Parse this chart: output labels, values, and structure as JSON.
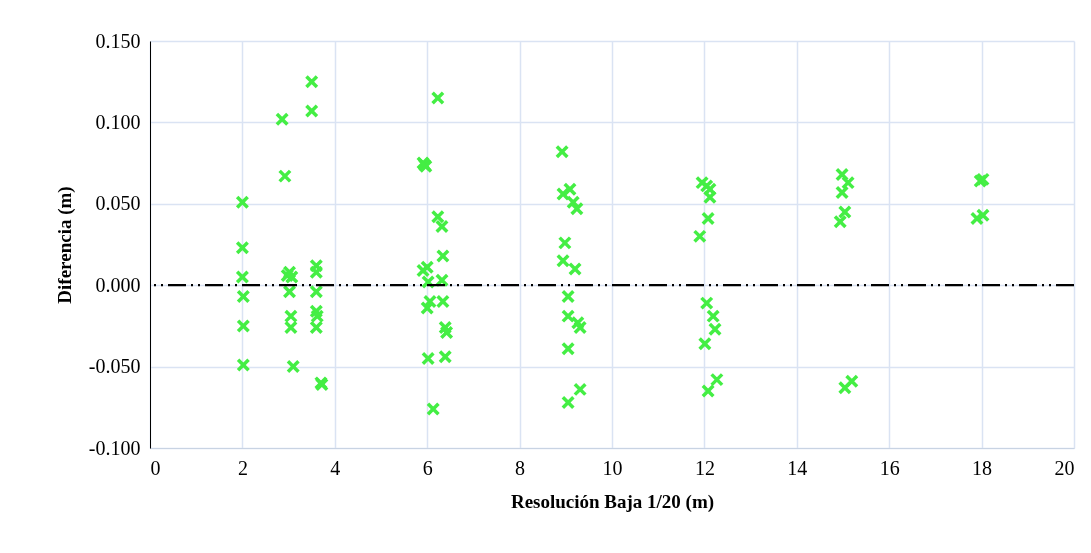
{
  "chart_data": {
    "type": "scatter",
    "xlabel": "Resolución  Baja 1/20 (m)",
    "ylabel": "Diferencia   (m)",
    "xlim": [
      0,
      20
    ],
    "xticks": [
      0,
      2,
      4,
      6,
      8,
      10,
      12,
      14,
      16,
      18,
      20
    ],
    "ylim": [
      -0.1,
      0.15
    ],
    "yticks": [
      {
        "value": -0.1,
        "label": "-0.100"
      },
      {
        "value": -0.05,
        "label": "-0.050"
      },
      {
        "value": 0,
        "label": "0.000"
      },
      {
        "value": 0.05,
        "label": "0.050"
      },
      {
        "value": 0.1,
        "label": "0.100"
      },
      {
        "value": 0.15,
        "label": "0.150"
      }
    ],
    "grid": true,
    "marker": "cross",
    "ref_lines": [
      {
        "axis": "y",
        "value": 0,
        "color": "#000000",
        "line_style": "dashed"
      }
    ],
    "series": [
      {
        "color": "#44ee44",
        "x": [
          2.0,
          2.0,
          2.0,
          2.02,
          2.02,
          2.02,
          2.86,
          2.92,
          2.97,
          3.02,
          3.07,
          3.02,
          3.05,
          3.05,
          3.1,
          3.5,
          3.5,
          3.6,
          3.6,
          3.6,
          3.6,
          3.62,
          3.6,
          3.7,
          3.72,
          6.23,
          5.91,
          5.94,
          5.97,
          6.23,
          6.32,
          6.34,
          6.0,
          5.91,
          6.02,
          6.32,
          6.06,
          6.34,
          6.0,
          6.39,
          6.42,
          6.02,
          6.39,
          6.13,
          8.92,
          8.94,
          9.09,
          9.16,
          9.24,
          8.98,
          8.94,
          9.2,
          9.05,
          9.05,
          9.26,
          9.31,
          9.05,
          9.31,
          9.05,
          11.95,
          12.05,
          12.12,
          12.12,
          12.08,
          11.9,
          12.05,
          12.19,
          12.23,
          12.01,
          12.27,
          12.08,
          14.98,
          15.11,
          14.98,
          15.04,
          14.94,
          15.19,
          15.04,
          17.97,
          18.03,
          17.9,
          18.03
        ],
        "values": [
          0.051,
          0.023,
          0.005,
          -0.007,
          -0.025,
          -0.049,
          0.102,
          0.067,
          0.006,
          0.008,
          0.005,
          -0.004,
          -0.019,
          -0.026,
          -0.05,
          0.125,
          0.107,
          0.012,
          0.008,
          -0.004,
          -0.016,
          -0.019,
          -0.026,
          -0.06,
          -0.061,
          0.115,
          0.075,
          0.074,
          0.073,
          0.042,
          0.036,
          0.018,
          0.011,
          0.009,
          0.002,
          0.003,
          -0.01,
          -0.01,
          -0.014,
          -0.026,
          -0.029,
          -0.045,
          -0.044,
          -0.076,
          0.082,
          0.056,
          0.059,
          0.051,
          0.047,
          0.026,
          0.015,
          0.01,
          -0.007,
          -0.019,
          -0.023,
          -0.026,
          -0.039,
          -0.064,
          -0.072,
          0.063,
          0.061,
          0.059,
          0.054,
          0.041,
          0.03,
          -0.011,
          -0.019,
          -0.027,
          -0.036,
          -0.058,
          -0.065,
          0.068,
          0.063,
          0.057,
          0.045,
          0.039,
          -0.059,
          -0.063,
          0.064,
          0.065,
          0.041,
          0.043
        ]
      }
    ]
  }
}
